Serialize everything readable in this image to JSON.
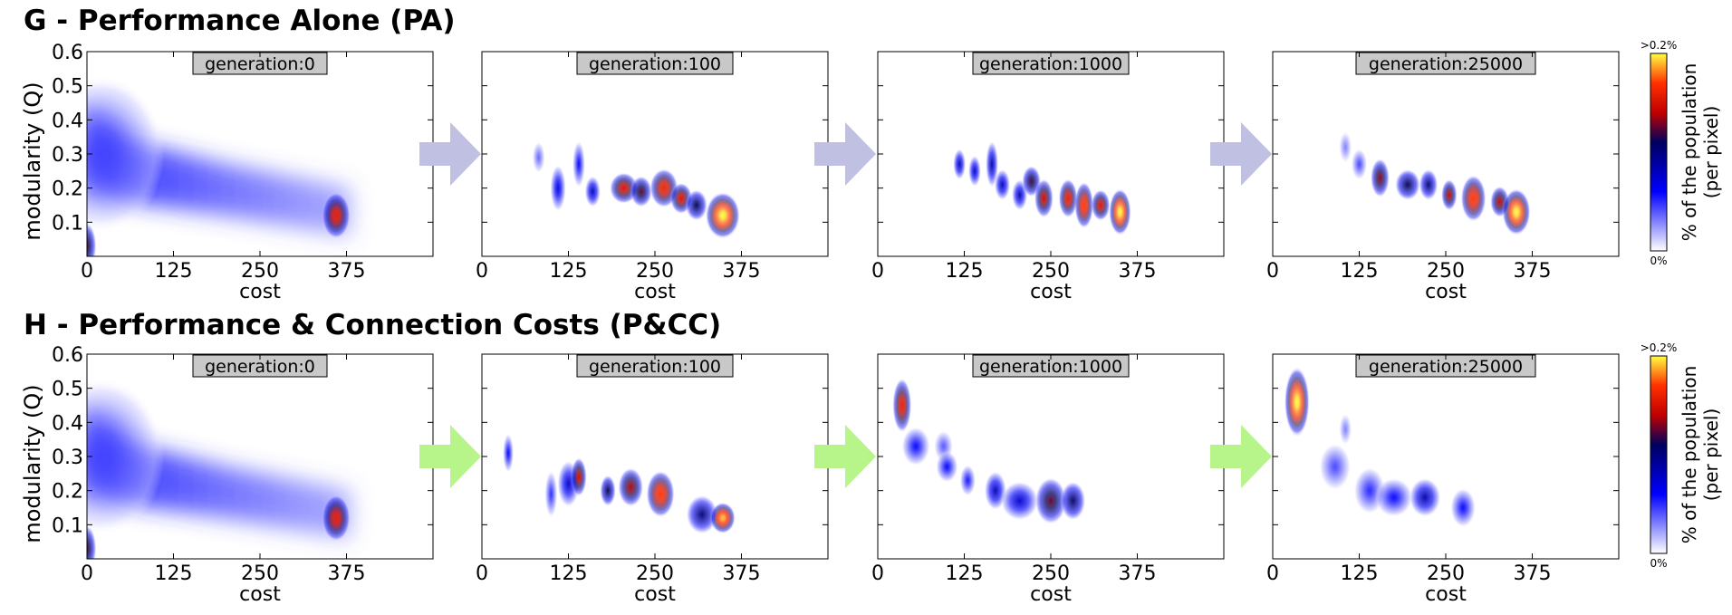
{
  "colorbar": {
    "label_line1": "% of the population",
    "label_line2": "(per pixel)",
    "max_label": ">0.2%",
    "min_label": "0%",
    "colors": [
      "#ffffff",
      "#0000ff",
      "#000060",
      "#c00000",
      "#ff3000",
      "#ffff40"
    ]
  },
  "arrow_colors": {
    "PA": "#bfc0e2",
    "PCC": "#b7f58a"
  },
  "chart_data": [
    {
      "type": "heatmap",
      "id": "G",
      "section_title": "G - Performance Alone (PA)",
      "xlabel": "cost",
      "ylabel": "modularity (Q)",
      "xticks": [
        0,
        125,
        250,
        375
      ],
      "yticks": [
        0.1,
        0.2,
        0.3,
        0.4,
        0.5,
        0.6
      ],
      "xlim": [
        0,
        500
      ],
      "ylim": [
        0,
        0.6
      ],
      "panels": [
        {
          "label": "generation:0",
          "blobs": [
            {
              "x": 20,
              "y": 0.3,
              "sx": 40,
              "sy": 0.1,
              "v": 0.22
            },
            {
              "x": 0,
              "y": 0.03,
              "sx": 6,
              "sy": 0.03,
              "v": 0.6
            },
            {
              "x": 360,
              "y": 0.12,
              "sx": 9,
              "sy": 0.03,
              "v": 0.78
            }
          ],
          "band": true
        },
        {
          "label": "generation:100",
          "blobs": [
            {
              "x": 82,
              "y": 0.29,
              "sx": 4,
              "sy": 0.02,
              "v": 0.18
            },
            {
              "x": 110,
              "y": 0.2,
              "sx": 5,
              "sy": 0.03,
              "v": 0.35
            },
            {
              "x": 140,
              "y": 0.27,
              "sx": 4,
              "sy": 0.03,
              "v": 0.3
            },
            {
              "x": 160,
              "y": 0.19,
              "sx": 5,
              "sy": 0.02,
              "v": 0.4
            },
            {
              "x": 205,
              "y": 0.2,
              "sx": 9,
              "sy": 0.02,
              "v": 0.75
            },
            {
              "x": 230,
              "y": 0.19,
              "sx": 7,
              "sy": 0.02,
              "v": 0.62
            },
            {
              "x": 263,
              "y": 0.2,
              "sx": 9,
              "sy": 0.025,
              "v": 0.8
            },
            {
              "x": 288,
              "y": 0.17,
              "sx": 7,
              "sy": 0.02,
              "v": 0.75
            },
            {
              "x": 310,
              "y": 0.15,
              "sx": 7,
              "sy": 0.02,
              "v": 0.55
            },
            {
              "x": 348,
              "y": 0.12,
              "sx": 11,
              "sy": 0.03,
              "v": 1.0
            }
          ]
        },
        {
          "label": "generation:1000",
          "blobs": [
            {
              "x": 118,
              "y": 0.27,
              "sx": 4,
              "sy": 0.02,
              "v": 0.4
            },
            {
              "x": 140,
              "y": 0.25,
              "sx": 4,
              "sy": 0.02,
              "v": 0.38
            },
            {
              "x": 165,
              "y": 0.27,
              "sx": 4,
              "sy": 0.03,
              "v": 0.42
            },
            {
              "x": 180,
              "y": 0.21,
              "sx": 5,
              "sy": 0.02,
              "v": 0.4
            },
            {
              "x": 205,
              "y": 0.18,
              "sx": 5,
              "sy": 0.02,
              "v": 0.4
            },
            {
              "x": 222,
              "y": 0.22,
              "sx": 6,
              "sy": 0.02,
              "v": 0.6
            },
            {
              "x": 240,
              "y": 0.17,
              "sx": 6,
              "sy": 0.025,
              "v": 0.72
            },
            {
              "x": 275,
              "y": 0.17,
              "sx": 6,
              "sy": 0.025,
              "v": 0.78
            },
            {
              "x": 298,
              "y": 0.15,
              "sx": 6,
              "sy": 0.03,
              "v": 0.85
            },
            {
              "x": 322,
              "y": 0.15,
              "sx": 6,
              "sy": 0.02,
              "v": 0.75
            },
            {
              "x": 350,
              "y": 0.13,
              "sx": 7,
              "sy": 0.03,
              "v": 1.0
            }
          ]
        },
        {
          "label": "generation:25000",
          "blobs": [
            {
              "x": 105,
              "y": 0.32,
              "sx": 4,
              "sy": 0.02,
              "v": 0.15
            },
            {
              "x": 125,
              "y": 0.27,
              "sx": 5,
              "sy": 0.02,
              "v": 0.22
            },
            {
              "x": 155,
              "y": 0.23,
              "sx": 6,
              "sy": 0.025,
              "v": 0.65
            },
            {
              "x": 195,
              "y": 0.21,
              "sx": 8,
              "sy": 0.02,
              "v": 0.55
            },
            {
              "x": 225,
              "y": 0.21,
              "sx": 6,
              "sy": 0.02,
              "v": 0.5
            },
            {
              "x": 255,
              "y": 0.18,
              "sx": 5,
              "sy": 0.02,
              "v": 0.7
            },
            {
              "x": 290,
              "y": 0.17,
              "sx": 8,
              "sy": 0.03,
              "v": 0.85
            },
            {
              "x": 328,
              "y": 0.16,
              "sx": 6,
              "sy": 0.02,
              "v": 0.7
            },
            {
              "x": 352,
              "y": 0.13,
              "sx": 9,
              "sy": 0.03,
              "v": 1.0
            }
          ]
        }
      ]
    },
    {
      "type": "heatmap",
      "id": "H",
      "section_title": "H - Performance & Connection Costs (P&CC)",
      "xlabel": "cost",
      "ylabel": "modularity (Q)",
      "xticks": [
        0,
        125,
        250,
        375
      ],
      "yticks": [
        0.1,
        0.2,
        0.3,
        0.4,
        0.5,
        0.6
      ],
      "xlim": [
        0,
        500
      ],
      "ylim": [
        0,
        0.6
      ],
      "panels": [
        {
          "label": "generation:0",
          "blobs": [
            {
              "x": 20,
              "y": 0.3,
              "sx": 40,
              "sy": 0.1,
              "v": 0.22
            },
            {
              "x": 0,
              "y": 0.03,
              "sx": 6,
              "sy": 0.03,
              "v": 0.6
            },
            {
              "x": 360,
              "y": 0.12,
              "sx": 9,
              "sy": 0.03,
              "v": 0.78
            }
          ],
          "band": true
        },
        {
          "label": "generation:100",
          "blobs": [
            {
              "x": 38,
              "y": 0.31,
              "sx": 3,
              "sy": 0.025,
              "v": 0.3
            },
            {
              "x": 100,
              "y": 0.19,
              "sx": 4,
              "sy": 0.03,
              "v": 0.25
            },
            {
              "x": 125,
              "y": 0.22,
              "sx": 7,
              "sy": 0.03,
              "v": 0.38
            },
            {
              "x": 140,
              "y": 0.24,
              "sx": 5,
              "sy": 0.025,
              "v": 0.72
            },
            {
              "x": 182,
              "y": 0.2,
              "sx": 5,
              "sy": 0.02,
              "v": 0.55
            },
            {
              "x": 215,
              "y": 0.21,
              "sx": 8,
              "sy": 0.025,
              "v": 0.68
            },
            {
              "x": 258,
              "y": 0.19,
              "sx": 9,
              "sy": 0.03,
              "v": 0.85
            },
            {
              "x": 318,
              "y": 0.13,
              "sx": 10,
              "sy": 0.025,
              "v": 0.5
            },
            {
              "x": 348,
              "y": 0.12,
              "sx": 8,
              "sy": 0.02,
              "v": 0.95
            }
          ]
        },
        {
          "label": "generation:1000",
          "blobs": [
            {
              "x": 35,
              "y": 0.45,
              "sx": 6,
              "sy": 0.035,
              "v": 0.78
            },
            {
              "x": 55,
              "y": 0.33,
              "sx": 9,
              "sy": 0.025,
              "v": 0.3
            },
            {
              "x": 95,
              "y": 0.33,
              "sx": 6,
              "sy": 0.02,
              "v": 0.2
            },
            {
              "x": 100,
              "y": 0.27,
              "sx": 7,
              "sy": 0.02,
              "v": 0.3
            },
            {
              "x": 130,
              "y": 0.23,
              "sx": 5,
              "sy": 0.02,
              "v": 0.28
            },
            {
              "x": 170,
              "y": 0.2,
              "sx": 7,
              "sy": 0.025,
              "v": 0.4
            },
            {
              "x": 205,
              "y": 0.17,
              "sx": 12,
              "sy": 0.025,
              "v": 0.38
            },
            {
              "x": 250,
              "y": 0.17,
              "sx": 10,
              "sy": 0.03,
              "v": 0.62
            },
            {
              "x": 282,
              "y": 0.17,
              "sx": 8,
              "sy": 0.025,
              "v": 0.52
            }
          ]
        },
        {
          "label": "generation:25000",
          "blobs": [
            {
              "x": 35,
              "y": 0.46,
              "sx": 8,
              "sy": 0.045,
              "v": 1.0
            },
            {
              "x": 105,
              "y": 0.38,
              "sx": 4,
              "sy": 0.02,
              "v": 0.15
            },
            {
              "x": 90,
              "y": 0.27,
              "sx": 10,
              "sy": 0.03,
              "v": 0.22
            },
            {
              "x": 140,
              "y": 0.2,
              "sx": 10,
              "sy": 0.03,
              "v": 0.26
            },
            {
              "x": 175,
              "y": 0.18,
              "sx": 12,
              "sy": 0.025,
              "v": 0.3
            },
            {
              "x": 220,
              "y": 0.18,
              "sx": 10,
              "sy": 0.025,
              "v": 0.42
            },
            {
              "x": 275,
              "y": 0.15,
              "sx": 8,
              "sy": 0.025,
              "v": 0.3
            }
          ]
        }
      ]
    }
  ]
}
